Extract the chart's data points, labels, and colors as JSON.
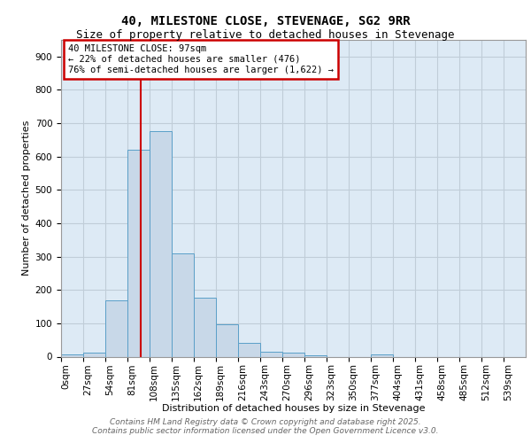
{
  "title": "40, MILESTONE CLOSE, STEVENAGE, SG2 9RR",
  "subtitle": "Size of property relative to detached houses in Stevenage",
  "xlabel": "Distribution of detached houses by size in Stevenage",
  "ylabel": "Number of detached properties",
  "bin_labels": [
    "0sqm",
    "27sqm",
    "54sqm",
    "81sqm",
    "108sqm",
    "135sqm",
    "162sqm",
    "189sqm",
    "216sqm",
    "243sqm",
    "270sqm",
    "296sqm",
    "323sqm",
    "350sqm",
    "377sqm",
    "404sqm",
    "431sqm",
    "458sqm",
    "485sqm",
    "512sqm",
    "539sqm"
  ],
  "bar_values": [
    7,
    12,
    170,
    620,
    675,
    310,
    178,
    98,
    40,
    15,
    12,
    5,
    0,
    0,
    7,
    0,
    0,
    0,
    0,
    0,
    0
  ],
  "bar_color": "#c8d8e8",
  "bar_edge_color": "#5a9fc8",
  "grid_color": "#c0cdd8",
  "background_color": "#ddeaf5",
  "vline_color": "#cc0000",
  "annotation_text": "40 MILESTONE CLOSE: 97sqm\n← 22% of detached houses are smaller (476)\n76% of semi-detached houses are larger (1,622) →",
  "annotation_box_color": "#ffffff",
  "annotation_box_edge": "#cc0000",
  "ylim": [
    0,
    950
  ],
  "yticks": [
    0,
    100,
    200,
    300,
    400,
    500,
    600,
    700,
    800,
    900
  ],
  "footer_line1": "Contains HM Land Registry data © Crown copyright and database right 2025.",
  "footer_line2": "Contains public sector information licensed under the Open Government Licence v3.0.",
  "title_fontsize": 10,
  "subtitle_fontsize": 9,
  "axis_label_fontsize": 8,
  "tick_fontsize": 7.5,
  "annotation_fontsize": 7.5,
  "footer_fontsize": 6.5
}
